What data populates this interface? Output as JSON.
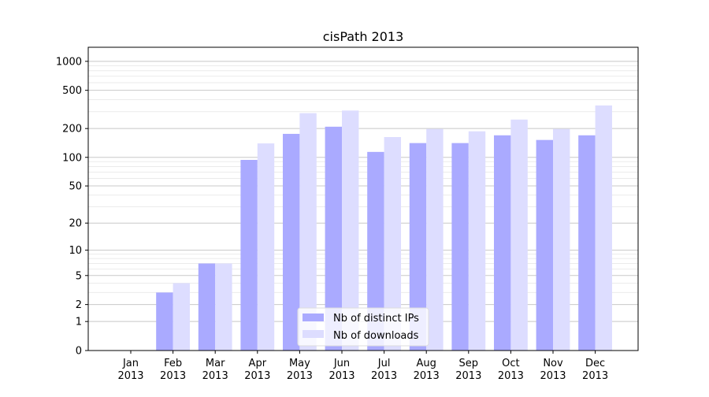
{
  "chart_data": {
    "type": "bar",
    "title": "cisPath 2013",
    "xlabel": "",
    "ylabel": "",
    "yscale": "log10(1+y)",
    "ylim": [
      0,
      1400
    ],
    "yticks": [
      0,
      1,
      2,
      5,
      10,
      20,
      50,
      100,
      200,
      500,
      1000
    ],
    "grid": true,
    "legend_position": "bottom-center",
    "categories": [
      "Jan\n2013",
      "Feb\n2013",
      "Mar\n2013",
      "Apr\n2013",
      "May\n2013",
      "Jun\n2013",
      "Jul\n2013",
      "Aug\n2013",
      "Sep\n2013",
      "Oct\n2013",
      "Nov\n2013",
      "Dec\n2013"
    ],
    "series": [
      {
        "name": "Nb of distinct IPs",
        "color": "#aaaaff",
        "values": [
          0,
          3,
          7,
          94,
          176,
          209,
          114,
          141,
          141,
          170,
          152,
          170
        ]
      },
      {
        "name": "Nb of downloads",
        "color": "#ddddff",
        "values": [
          0,
          4,
          7,
          140,
          289,
          308,
          163,
          198,
          187,
          248,
          198,
          348
        ]
      }
    ]
  }
}
